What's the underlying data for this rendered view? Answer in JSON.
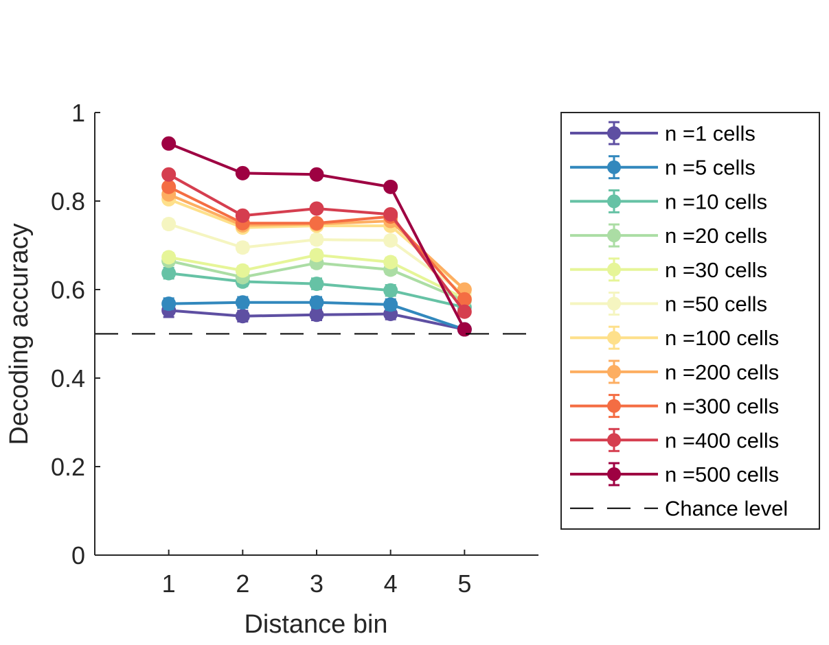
{
  "chart_data": {
    "type": "line",
    "title": "",
    "xlabel": "Distance bin",
    "ylabel": "Decoding accuracy",
    "x": [
      1,
      2,
      3,
      4,
      5
    ],
    "xticks": [
      "1",
      "2",
      "3",
      "4",
      "5"
    ],
    "xlim": [
      0,
      6
    ],
    "ylim": [
      0,
      1
    ],
    "yticks": [
      "0",
      "0.2",
      "0.4",
      "0.6",
      "0.8",
      "1"
    ],
    "grid": false,
    "legend_position": "right",
    "series": [
      {
        "name": "n =1 cells",
        "color": "#5e4fa2",
        "values": [
          0.553,
          0.54,
          0.543,
          0.545,
          0.51
        ],
        "errors": [
          0.015,
          0.012,
          0.012,
          0.012,
          0.008
        ]
      },
      {
        "name": "n =5 cells",
        "color": "#3288bd",
        "values": [
          0.568,
          0.571,
          0.571,
          0.566,
          0.51
        ],
        "errors": [
          0.012,
          0.012,
          0.012,
          0.012,
          0.008
        ]
      },
      {
        "name": "n =10 cells",
        "color": "#66c2a5",
        "values": [
          0.637,
          0.618,
          0.613,
          0.598,
          0.56
        ],
        "errors": [
          0.012,
          0.01,
          0.012,
          0.012,
          0.008
        ]
      },
      {
        "name": "n =20 cells",
        "color": "#abdda4",
        "values": [
          0.665,
          0.628,
          0.66,
          0.645,
          0.575
        ],
        "errors": [
          0.01,
          0.01,
          0.01,
          0.01,
          0.008
        ]
      },
      {
        "name": "n =30 cells",
        "color": "#e6f598",
        "values": [
          0.673,
          0.643,
          0.678,
          0.662,
          0.58
        ],
        "errors": [
          0.01,
          0.01,
          0.01,
          0.01,
          0.008
        ]
      },
      {
        "name": "n =50 cells",
        "color": "#f5f5c0",
        "values": [
          0.748,
          0.695,
          0.713,
          0.711,
          0.59
        ],
        "errors": [
          0.01,
          0.01,
          0.01,
          0.01,
          0.008
        ]
      },
      {
        "name": "n =100 cells",
        "color": "#fee08b",
        "values": [
          0.804,
          0.74,
          0.744,
          0.744,
          0.6
        ],
        "errors": [
          0.008,
          0.008,
          0.008,
          0.008,
          0.008
        ]
      },
      {
        "name": "n =200 cells",
        "color": "#fdae61",
        "values": [
          0.815,
          0.745,
          0.748,
          0.755,
          0.6
        ],
        "errors": [
          0.008,
          0.008,
          0.008,
          0.008,
          0.008
        ]
      },
      {
        "name": "n =300 cells",
        "color": "#f46d43",
        "values": [
          0.832,
          0.75,
          0.75,
          0.765,
          0.578
        ],
        "errors": [
          0.008,
          0.008,
          0.008,
          0.008,
          0.008
        ]
      },
      {
        "name": "n =400 cells",
        "color": "#d53e4f",
        "values": [
          0.86,
          0.767,
          0.783,
          0.77,
          0.55
        ],
        "errors": [
          0.008,
          0.008,
          0.008,
          0.008,
          0.008
        ]
      },
      {
        "name": "n =500 cells",
        "color": "#9e0142",
        "values": [
          0.93,
          0.863,
          0.86,
          0.832,
          0.51
        ],
        "errors": [
          0.008,
          0.008,
          0.008,
          0.008,
          0.008
        ]
      }
    ],
    "reference_line": {
      "name": "Chance level",
      "y": 0.5,
      "color": "#000000",
      "style": "dashed"
    }
  }
}
